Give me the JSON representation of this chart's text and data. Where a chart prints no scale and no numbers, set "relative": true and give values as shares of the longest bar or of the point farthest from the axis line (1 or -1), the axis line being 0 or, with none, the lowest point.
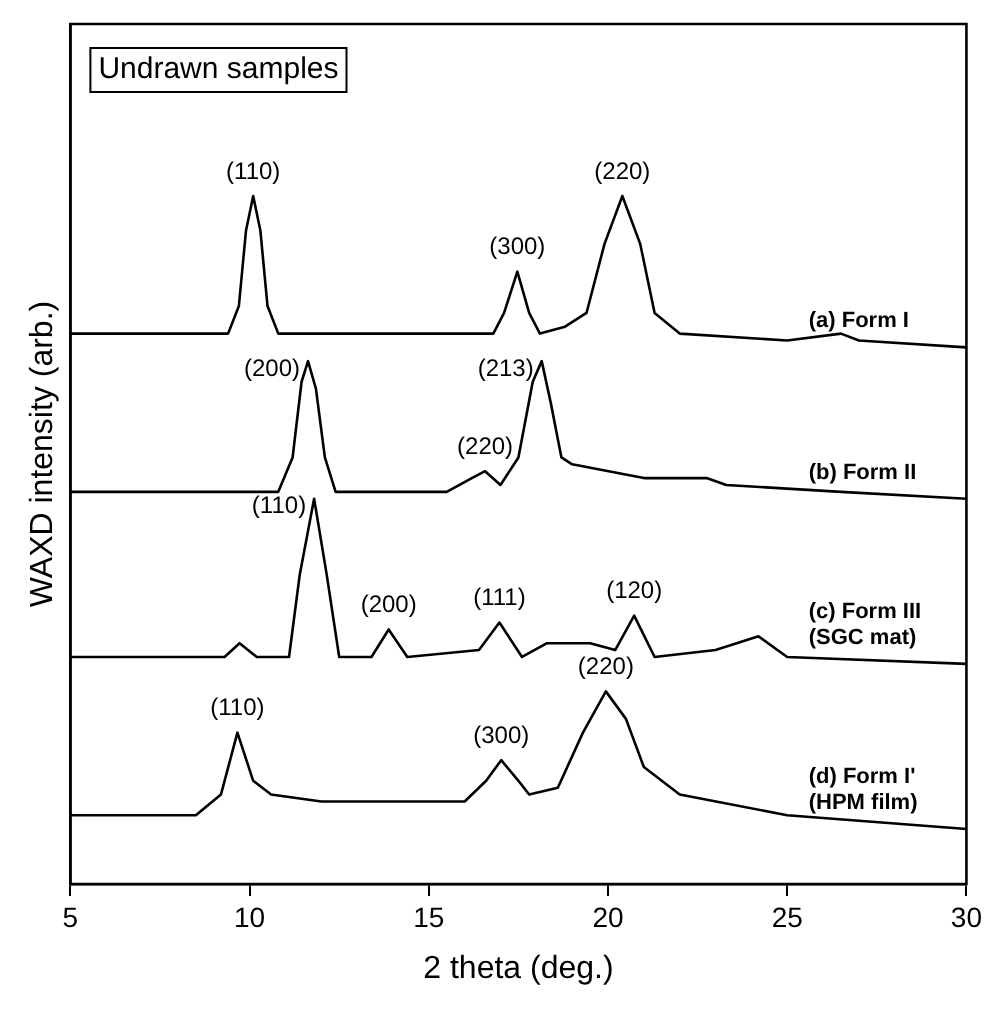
{
  "chart_data": {
    "type": "line",
    "relative": true,
    "xlabel": "2 theta (deg.)",
    "ylabel": "WAXD intensity (arb.)",
    "xlim": [
      5,
      30
    ],
    "xticks": [
      5,
      10,
      15,
      20,
      25,
      30
    ],
    "grid": false,
    "marker": "none",
    "line_style": "solid",
    "series": [
      {
        "name": "(a) Form I",
        "color": "#000000",
        "x": [
          5,
          8,
          9.4,
          9.7,
          9.9,
          10.1,
          10.3,
          10.5,
          10.8,
          14,
          16.8,
          17.1,
          17.47,
          17.8,
          18.1,
          18.8,
          19.4,
          19.9,
          20.4,
          20.9,
          21.3,
          22,
          25,
          26.5,
          27,
          30
        ],
        "values": [
          0.8,
          0.8,
          0.8,
          0.84,
          0.95,
          1.0,
          0.95,
          0.84,
          0.8,
          0.8,
          0.8,
          0.83,
          0.89,
          0.83,
          0.8,
          0.81,
          0.83,
          0.93,
          1.0,
          0.93,
          0.83,
          0.8,
          0.79,
          0.8,
          0.79,
          0.78
        ]
      },
      {
        "name": "(b) Form II",
        "color": "#000000",
        "x": [
          5,
          10.8,
          11.2,
          11.45,
          11.63,
          11.85,
          12.1,
          12.4,
          15.5,
          16.2,
          16.57,
          17,
          17.5,
          17.9,
          18.15,
          18.4,
          18.7,
          19,
          21,
          22.75,
          23.3,
          26.5,
          30
        ],
        "values": [
          0.57,
          0.57,
          0.62,
          0.73,
          0.76,
          0.72,
          0.62,
          0.57,
          0.57,
          0.59,
          0.6,
          0.58,
          0.62,
          0.73,
          0.76,
          0.7,
          0.62,
          0.61,
          0.59,
          0.59,
          0.58,
          0.57,
          0.56
        ]
      },
      {
        "name": "(c) Form III (SGC mat)",
        "color": "#000000",
        "x": [
          5,
          9.3,
          9.72,
          10.2,
          11.1,
          11.4,
          11.8,
          12.15,
          12.5,
          13.4,
          13.88,
          14.4,
          16.4,
          16.97,
          17.6,
          18.3,
          19.5,
          20.2,
          20.73,
          21.3,
          23,
          24.2,
          25,
          30
        ],
        "values": [
          0.33,
          0.33,
          0.35,
          0.33,
          0.33,
          0.45,
          0.56,
          0.45,
          0.33,
          0.33,
          0.37,
          0.33,
          0.34,
          0.38,
          0.33,
          0.35,
          0.35,
          0.34,
          0.39,
          0.33,
          0.34,
          0.36,
          0.33,
          0.32
        ]
      },
      {
        "name": "(d) Form I' (HPM film)",
        "color": "#000000",
        "x": [
          5,
          8.5,
          9.2,
          9.66,
          10.1,
          10.6,
          12,
          16,
          16.6,
          17.02,
          17.5,
          17.8,
          18.6,
          19.3,
          19.94,
          20.5,
          21,
          22,
          25,
          30
        ],
        "values": [
          0.1,
          0.1,
          0.13,
          0.22,
          0.15,
          0.13,
          0.12,
          0.12,
          0.15,
          0.18,
          0.15,
          0.13,
          0.14,
          0.22,
          0.28,
          0.24,
          0.17,
          0.13,
          0.1,
          0.08
        ]
      }
    ],
    "annotations": [
      "Undrawn samples",
      {
        "text": "(110)",
        "x": 10.1,
        "y": 1.0
      },
      {
        "text": "(300)",
        "x": 17.47,
        "y": 0.89
      },
      {
        "text": "(220)",
        "x": 20.4,
        "y": 1.0
      },
      {
        "text": "(200)",
        "x": 11.63,
        "y": 0.76
      },
      {
        "text": "(220)",
        "x": 16.57,
        "y": 0.6
      },
      {
        "text": "(213)",
        "x": 18.15,
        "y": 0.76
      },
      {
        "text": "(110)",
        "x": 11.8,
        "y": 0.56
      },
      {
        "text": "(200)",
        "x": 13.88,
        "y": 0.37
      },
      {
        "text": "(111)",
        "x": 16.97,
        "y": 0.38
      },
      {
        "text": "(120)",
        "x": 20.73,
        "y": 0.39
      },
      {
        "text": "(110)",
        "x": 9.66,
        "y": 0.22
      },
      {
        "text": "(300)",
        "x": 17.02,
        "y": 0.18
      },
      {
        "text": "(220)",
        "x": 19.94,
        "y": 0.28
      }
    ]
  }
}
